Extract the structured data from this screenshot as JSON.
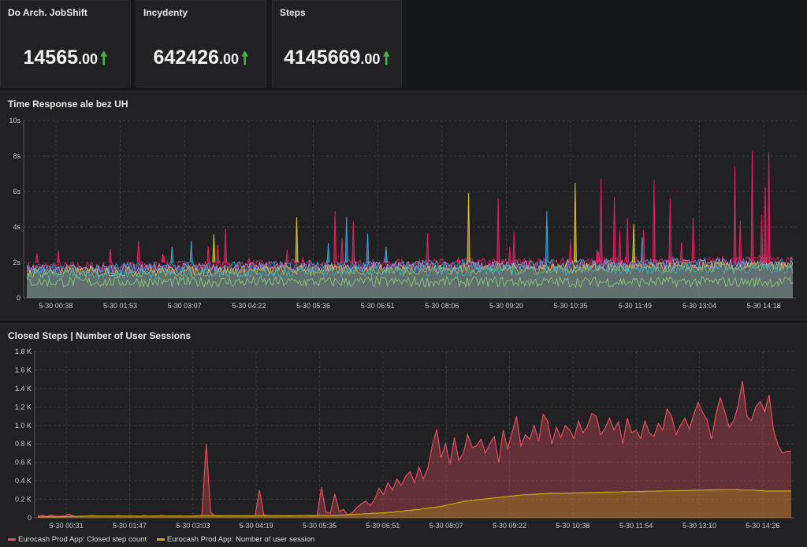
{
  "stats": [
    {
      "title": "Do Arch. JobShift",
      "value": "14565",
      "decimal": ".00",
      "trend": "up-arrow-icon"
    },
    {
      "title": "Incydenty",
      "value": "642426",
      "decimal": ".00",
      "trend": "up-arrow-icon"
    },
    {
      "title": "Steps",
      "value": "4145669",
      "decimal": ".00",
      "trend": "up-arrow-icon"
    }
  ],
  "colors": {
    "background": "#161719",
    "panel": "#212124",
    "grid": "#3a3a3d",
    "up_arrow": "#3fb93f",
    "closed_steps": "#e24d5c",
    "user_sessions": "#c9a812"
  },
  "chart_data": [
    {
      "type": "area",
      "title": "Time Response ale bez UH",
      "x_ticks": [
        "5-30 00:38",
        "5-30 01:53",
        "5-30 03:07",
        "5-30 04:22",
        "5-30 05:36",
        "5-30 06:51",
        "5-30 08:06",
        "5-30 09:20",
        "5-30 10:35",
        "5-30 11:49",
        "5-30 13:04",
        "5-30 14:18"
      ],
      "y_ticks": [
        "0",
        "2s",
        "4s",
        "6s",
        "8s",
        "10s"
      ],
      "ylim": [
        0,
        10
      ],
      "y_unit": "s",
      "grid": true,
      "legend": "none",
      "series_colors": [
        "#e0215f",
        "#3aa0d8",
        "#b48ede",
        "#9ad27a",
        "#d6c331",
        "#35c0c0"
      ],
      "typical_base_s": 2.0,
      "spike_count": 52,
      "spike_max_s": 8.7
    },
    {
      "type": "area",
      "title": "Closed Steps | Number of User Sessions",
      "x_ticks": [
        "5-30 00:31",
        "5-30 01:47",
        "5-30 03:03",
        "5-30 04:19",
        "5-30 05:35",
        "5-30 06:51",
        "5-30 08:07",
        "5-30 09:22",
        "5-30 10:38",
        "5-30 11:54",
        "5-30 13:10",
        "5-30 14:26"
      ],
      "y_ticks": [
        "0",
        "0.2 K",
        "0.4 K",
        "0.6 K",
        "0.8 K",
        "1.0 K",
        "1.2 K",
        "1.4 K",
        "1.6 K",
        "1.8 K"
      ],
      "ylim": [
        0,
        1800
      ],
      "grid": true,
      "legend": "bottom-left",
      "series": [
        {
          "name": "Eurocash Prod App: Closed step count",
          "color": "#e24d5c",
          "values": [
            20,
            25,
            15,
            30,
            20,
            18,
            20,
            40,
            20,
            15,
            18,
            20,
            25,
            22,
            15,
            20,
            18,
            20,
            25,
            20,
            18,
            22,
            20,
            15,
            25,
            20,
            18,
            20,
            25,
            20,
            18,
            20,
            22,
            20,
            18,
            15,
            20,
            20,
            800,
            60,
            20,
            18,
            20,
            22,
            20,
            18,
            20,
            20,
            18,
            20,
            300,
            30,
            25,
            20,
            22,
            20,
            20,
            18,
            20,
            25,
            20,
            20,
            18,
            20,
            330,
            60,
            50,
            260,
            70,
            90,
            30,
            60,
            110,
            150,
            180,
            130,
            200,
            320,
            250,
            380,
            300,
            420,
            350,
            450,
            500,
            380,
            550,
            420,
            540,
            780,
            960,
            650,
            800,
            580,
            870,
            620,
            700,
            900,
            760,
            780,
            850,
            700,
            800,
            880,
            600,
            950,
            750,
            920,
            1100,
            780,
            900,
            850,
            1000,
            830,
            1120,
            1050,
            800,
            980,
            870,
            1000,
            950,
            860,
            1050,
            920,
            990,
            1130,
            1100,
            900,
            970,
            1080,
            950,
            1040,
            800,
            1080,
            920,
            950,
            860,
            1050,
            920,
            880,
            1020,
            950,
            1180,
            1100,
            900,
            1000,
            1080,
            960,
            1120,
            1250,
            1140,
            1060,
            850,
            1120,
            1300,
            1150,
            980,
            1050,
            1210,
            1480,
            1100,
            1050,
            1200,
            1260,
            1150,
            1330,
            950,
            790,
            700,
            720,
            720
          ]
        },
        {
          "name": "Eurocash Prod App: Number of user session",
          "color": "#c9a812",
          "values": [
            10,
            10,
            12,
            12,
            10,
            10,
            12,
            12,
            15,
            15,
            18,
            18,
            20,
            20,
            20,
            20,
            20,
            20,
            20,
            20,
            20,
            20,
            20,
            20,
            20,
            20,
            20,
            20,
            20,
            20,
            20,
            20,
            20,
            20,
            20,
            20,
            20,
            20,
            22,
            22,
            22,
            22,
            22,
            22,
            22,
            22,
            22,
            22,
            22,
            22,
            22,
            22,
            22,
            22,
            22,
            22,
            22,
            22,
            22,
            22,
            22,
            22,
            22,
            22,
            25,
            25,
            25,
            25,
            25,
            25,
            25,
            25,
            30,
            30,
            35,
            35,
            40,
            40,
            45,
            45,
            50,
            50,
            55,
            55,
            60,
            60,
            70,
            70,
            80,
            80,
            90,
            90,
            100,
            105,
            110,
            115,
            120,
            130,
            140,
            150,
            160,
            170,
            180,
            185,
            190,
            195,
            200,
            205,
            210,
            215,
            220,
            225,
            230,
            235,
            240,
            245,
            250,
            250,
            255,
            255,
            260,
            260,
            265,
            265,
            265,
            265,
            268,
            268,
            270,
            270,
            272,
            272,
            274,
            274,
            276,
            276,
            278,
            278,
            280,
            280,
            282,
            282,
            284,
            284,
            286,
            286,
            288,
            288,
            290,
            290,
            292,
            292,
            294,
            294,
            296,
            296,
            298,
            298,
            300,
            300,
            302,
            302,
            304,
            304,
            305,
            305,
            305,
            305,
            300,
            300,
            300,
            300,
            295,
            295,
            290,
            290,
            290,
            290,
            290,
            290,
            290
          ]
        }
      ]
    }
  ]
}
